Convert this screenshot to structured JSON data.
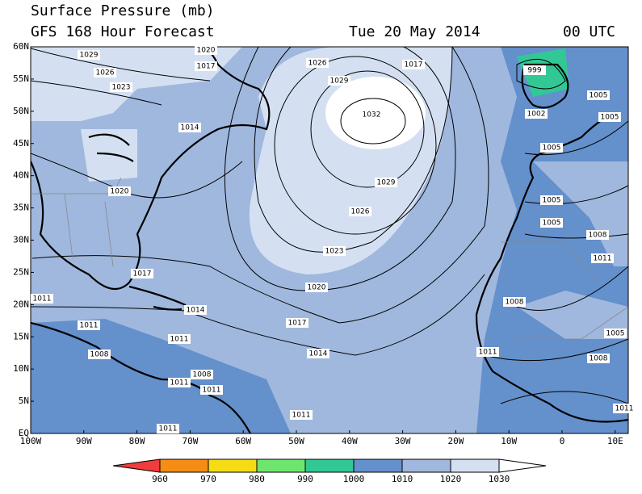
{
  "header": {
    "title": "Surface Pressure (mb)",
    "subtitle": "GFS 168 Hour Forecast",
    "date": "Tue 20 May 2014",
    "time": "00 UTC"
  },
  "map": {
    "lat_labels": [
      "60N",
      "55N",
      "50N",
      "45N",
      "40N",
      "35N",
      "30N",
      "25N",
      "20N",
      "15N",
      "10N",
      "5N",
      "EQ"
    ],
    "lon_labels": [
      "100W",
      "90W",
      "80W",
      "70W",
      "60W",
      "50W",
      "40W",
      "30W",
      "20W",
      "10W",
      "0",
      "10E"
    ],
    "isobar_labels": [
      1029,
      1020,
      1017,
      1026,
      1023,
      1014,
      1020,
      1026,
      1029,
      1017,
      1032,
      1029,
      1026,
      1023,
      1020,
      1017,
      1014,
      1017,
      1011,
      1014,
      1011,
      1011,
      1008,
      1008,
      1011,
      1011,
      1011,
      1011,
      999,
      1005,
      1002,
      1005,
      1005,
      1005,
      1005,
      1008,
      1011,
      1008,
      1005,
      1008,
      1011,
      1011
    ]
  },
  "colorbar": {
    "levels": [
      960,
      970,
      980,
      990,
      1000,
      1010,
      1020,
      1030
    ],
    "colors": [
      "#f03c3c",
      "#f58c14",
      "#f5dc14",
      "#6ee66e",
      "#32c896",
      "#6490cc",
      "#a0b8de",
      "#d4e0f2",
      "#ffffff"
    ]
  }
}
